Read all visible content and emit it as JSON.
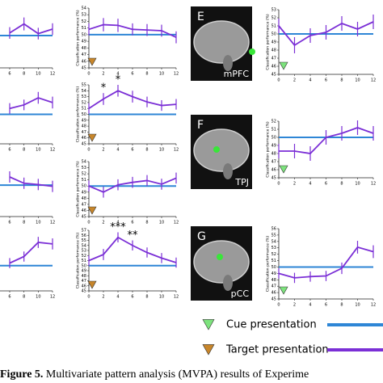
{
  "chart_data": [
    {
      "type": "line",
      "x": [
        6,
        8,
        10,
        12
      ],
      "xlim": [
        0,
        12
      ],
      "xticks": [
        6,
        8,
        10,
        12
      ],
      "ylim": [
        45,
        54
      ],
      "baseline": 50,
      "series": [
        {
          "color": "#7b2fd6",
          "values": [
            50.4,
            51.8,
            50.3,
            51.0
          ],
          "errors": [
            0.9,
            1.0,
            0.9,
            0.9
          ]
        }
      ]
    },
    {
      "type": "line",
      "x": [
        6,
        8,
        10,
        12
      ],
      "xlim": [
        0,
        12
      ],
      "xticks": [
        6,
        8,
        10,
        12
      ],
      "ylim": [
        45,
        55
      ],
      "baseline": 50,
      "series": [
        {
          "color": "#7b2fd6",
          "values": [
            51.0,
            51.6,
            52.8,
            52.0
          ],
          "errors": [
            0.9,
            0.9,
            1.0,
            1.0
          ]
        }
      ]
    },
    {
      "type": "line",
      "x": [
        6,
        8,
        10,
        12
      ],
      "xlim": [
        0,
        12
      ],
      "xticks": [
        6,
        8,
        10,
        12
      ],
      "ylim": [
        45,
        54
      ],
      "baseline": 50,
      "series": [
        {
          "color": "#7b2fd6",
          "values": [
            51.3,
            50.3,
            50.1,
            49.8
          ],
          "errors": [
            0.9,
            0.9,
            0.9,
            0.9
          ]
        }
      ]
    },
    {
      "type": "line",
      "x": [
        6,
        8,
        10,
        12
      ],
      "xlim": [
        0,
        12
      ],
      "xticks": [
        6,
        8,
        10,
        12
      ],
      "ylim": [
        45,
        57
      ],
      "baseline": 50,
      "series": [
        {
          "color": "#7b2fd6",
          "values": [
            50.5,
            51.8,
            54.6,
            54.3
          ],
          "errors": [
            1.0,
            1.0,
            1.1,
            1.1
          ]
        }
      ]
    },
    {
      "type": "line",
      "ylabel": "Classification performance (%)",
      "x": [
        0,
        2,
        4,
        6,
        8,
        10,
        12
      ],
      "xlim": [
        0,
        12
      ],
      "xticks": [
        0,
        2,
        4,
        6,
        8,
        10,
        12
      ],
      "ylim": [
        45,
        54
      ],
      "yticks": [
        45,
        46,
        47,
        48,
        49,
        50,
        51,
        52,
        53,
        54
      ],
      "baseline": 50,
      "marker": "target",
      "series": [
        {
          "color": "#7b2fd6",
          "values": [
            50.8,
            51.5,
            51.4,
            50.8,
            50.7,
            50.6,
            49.6
          ],
          "errors": [
            0.9,
            1.0,
            1.0,
            0.9,
            0.9,
            0.9,
            0.9
          ]
        }
      ]
    },
    {
      "type": "line",
      "ylabel": "Classification performance (%)",
      "x": [
        0,
        2,
        4,
        6,
        8,
        10,
        12
      ],
      "xlim": [
        0,
        12
      ],
      "xticks": [
        0,
        2,
        4,
        6,
        8,
        10,
        12
      ],
      "ylim": [
        45,
        55
      ],
      "yticks": [
        45,
        46,
        47,
        48,
        49,
        50,
        51,
        52,
        53,
        54,
        55
      ],
      "baseline": 50,
      "marker": "target",
      "series": [
        {
          "color": "#7b2fd6",
          "values": [
            51.0,
            52.6,
            54.0,
            53.0,
            52.1,
            51.5,
            51.7
          ],
          "errors": [
            0.9,
            1.0,
            1.0,
            1.0,
            0.9,
            0.9,
            0.9
          ]
        }
      ],
      "annotations": [
        {
          "x": 2,
          "text": "*"
        },
        {
          "x": 4,
          "text": "*"
        }
      ]
    },
    {
      "type": "line",
      "ylabel": "Classification performance (%)",
      "x": [
        0,
        2,
        4,
        6,
        8,
        10,
        12
      ],
      "xlim": [
        0,
        12
      ],
      "xticks": [
        0,
        2,
        4,
        6,
        8,
        10,
        12
      ],
      "ylim": [
        45,
        54
      ],
      "yticks": [
        45,
        46,
        47,
        48,
        49,
        50,
        51,
        52,
        53,
        54
      ],
      "baseline": 50,
      "marker": "target",
      "series": [
        {
          "color": "#7b2fd6",
          "values": [
            50.0,
            49.0,
            50.2,
            50.6,
            50.9,
            50.3,
            51.3
          ],
          "errors": [
            0.9,
            0.9,
            0.9,
            0.9,
            0.9,
            0.9,
            0.9
          ]
        }
      ]
    },
    {
      "type": "line",
      "ylabel": "Classification performance (%)",
      "x": [
        0,
        2,
        4,
        6,
        8,
        10,
        12
      ],
      "xlim": [
        0,
        12
      ],
      "xticks": [
        0,
        2,
        4,
        6,
        8,
        10,
        12
      ],
      "ylim": [
        45,
        57
      ],
      "yticks": [
        45,
        46,
        47,
        48,
        49,
        50,
        51,
        52,
        53,
        54,
        55,
        56,
        57
      ],
      "baseline": 50,
      "marker": "target",
      "series": [
        {
          "color": "#7b2fd6",
          "values": [
            51.0,
            52.2,
            55.6,
            54.0,
            52.6,
            51.5,
            50.6
          ],
          "errors": [
            1.0,
            1.1,
            1.0,
            1.0,
            1.0,
            1.0,
            1.0
          ]
        }
      ],
      "annotations": [
        {
          "x": 4,
          "text": "***"
        },
        {
          "x": 6,
          "text": "**"
        }
      ]
    },
    {
      "type": "line",
      "ylabel": "Classification performance (%)",
      "x": [
        0,
        2,
        4,
        6,
        8,
        10,
        12
      ],
      "xlim": [
        0,
        12
      ],
      "xticks": [
        0,
        2,
        4,
        6,
        8,
        10,
        12
      ],
      "ylim": [
        45,
        53
      ],
      "yticks": [
        45,
        46,
        47,
        48,
        49,
        50,
        51,
        52,
        53
      ],
      "baseline": 50,
      "marker": "cue",
      "series": [
        {
          "color": "#7b2fd6",
          "values": [
            51.0,
            48.6,
            49.8,
            50.2,
            51.3,
            50.6,
            51.5
          ],
          "errors": [
            0.9,
            1.0,
            0.9,
            0.9,
            0.9,
            0.9,
            0.9
          ]
        }
      ]
    },
    {
      "type": "line",
      "ylabel": "Classification performance (%)",
      "x": [
        0,
        2,
        4,
        6,
        8,
        10,
        12
      ],
      "xlim": [
        0,
        12
      ],
      "xticks": [
        0,
        2,
        4,
        6,
        8,
        10,
        12
      ],
      "ylim": [
        45,
        52
      ],
      "yticks": [
        45,
        46,
        47,
        48,
        49,
        50,
        51,
        52
      ],
      "baseline": 50,
      "marker": "cue",
      "series": [
        {
          "color": "#7b2fd6",
          "values": [
            48.3,
            48.3,
            48.0,
            50.0,
            50.5,
            51.2,
            50.5
          ],
          "errors": [
            0.9,
            0.9,
            0.9,
            0.9,
            0.9,
            0.9,
            0.9
          ]
        }
      ]
    },
    {
      "type": "line",
      "ylabel": "Classification performance (%)",
      "x": [
        0,
        2,
        4,
        6,
        8,
        10,
        12
      ],
      "xlim": [
        0,
        12
      ],
      "xticks": [
        0,
        2,
        4,
        6,
        8,
        10,
        12
      ],
      "ylim": [
        45,
        56
      ],
      "yticks": [
        45,
        46,
        47,
        48,
        49,
        50,
        51,
        52,
        53,
        54,
        55,
        56
      ],
      "baseline": 50,
      "marker": "cue",
      "series": [
        {
          "color": "#7b2fd6",
          "values": [
            49.0,
            48.3,
            48.5,
            48.6,
            49.8,
            53.1,
            52.4
          ],
          "errors": [
            0.8,
            0.8,
            0.8,
            0.8,
            0.9,
            1.0,
            1.0
          ]
        }
      ]
    }
  ],
  "panels": [
    {
      "letter": "E",
      "region": "mPFC"
    },
    {
      "letter": "F",
      "region": "TPJ"
    },
    {
      "letter": "G",
      "region": "pCC"
    }
  ],
  "legend": {
    "cue": "Cue presentation",
    "target": "Target presentation"
  },
  "caption": {
    "label": "Figure 5.",
    "text": "Multivariate pattern analysis (MVPA) results of Experime"
  }
}
